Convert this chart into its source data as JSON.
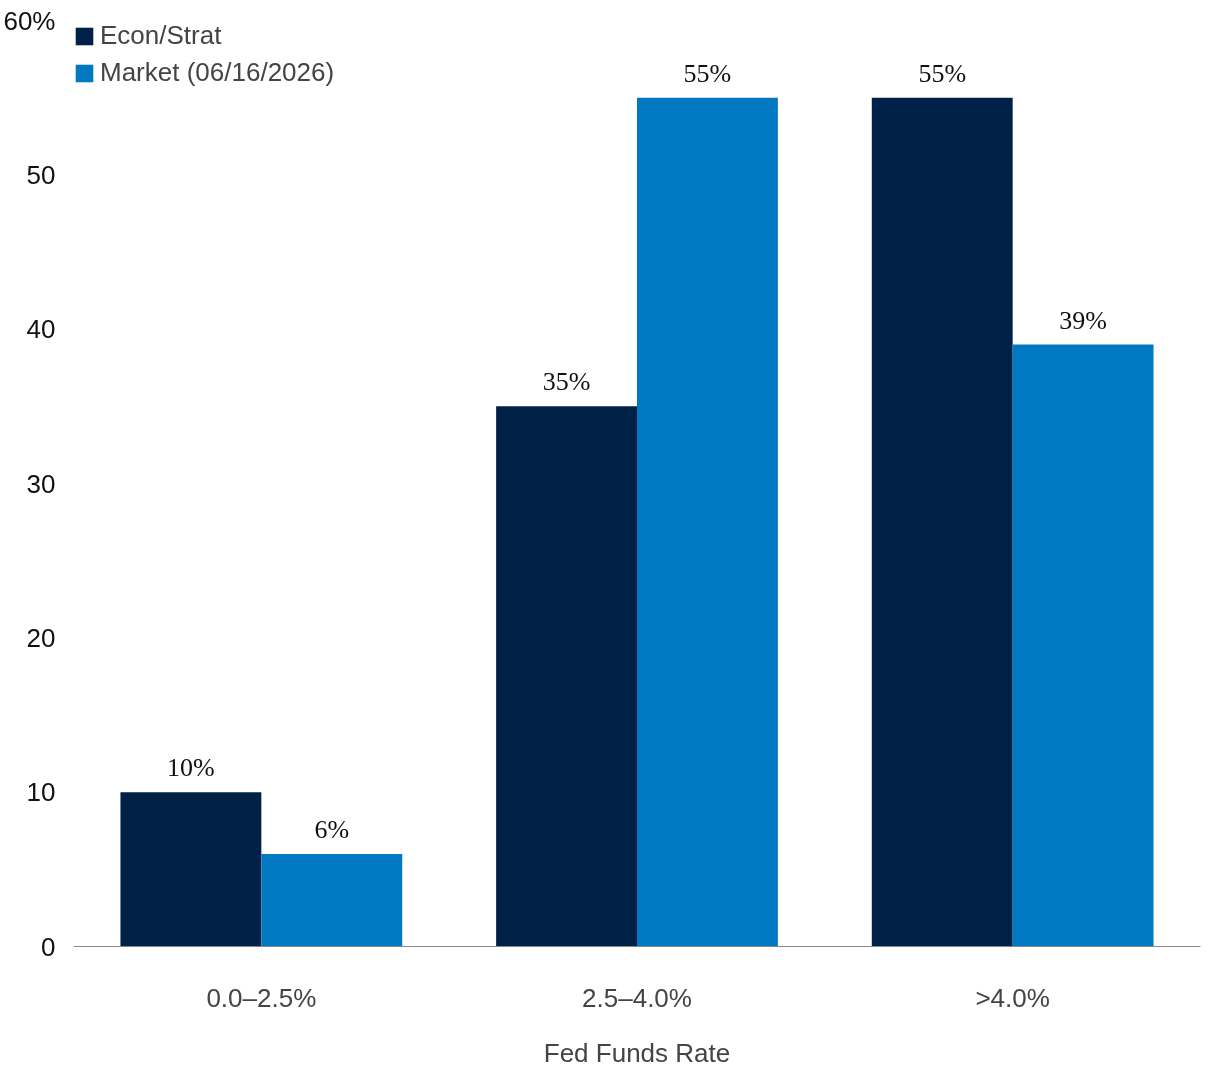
{
  "chart_data": {
    "type": "bar",
    "xlabel": "Fed Funds Rate",
    "categories": [
      "0.0–2.5%",
      "2.5–4.0%",
      ">4.0%"
    ],
    "series": [
      {
        "name": "Econ/Strat",
        "color": "#002147",
        "values": [
          10,
          35,
          55
        ],
        "value_labels": [
          "10%",
          "35%",
          "55%"
        ]
      },
      {
        "name": "Market (06/16/2026)",
        "color": "#0079c2",
        "values": [
          6,
          55,
          39
        ],
        "value_labels": [
          "6%",
          "55%",
          "39%"
        ]
      }
    ],
    "ylim": [
      0,
      60
    ],
    "yticks": [
      0,
      10,
      20,
      30,
      40,
      50,
      {
        "value": 60,
        "label": "60%"
      }
    ],
    "legend": "top left"
  }
}
